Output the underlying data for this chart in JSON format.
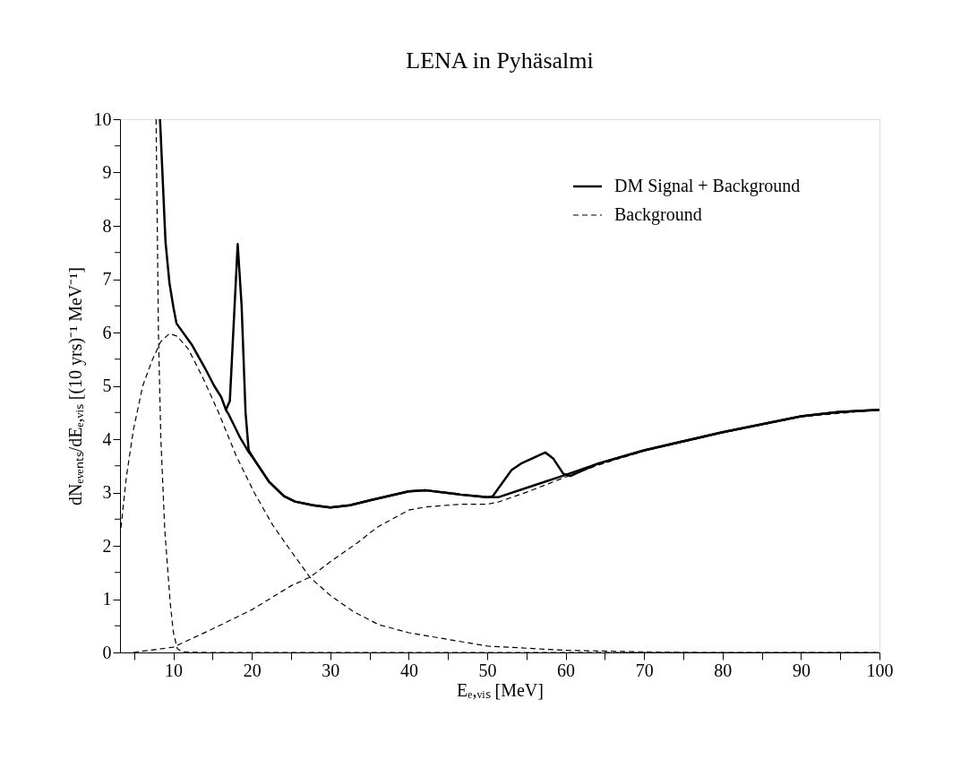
{
  "chart_data": {
    "type": "line",
    "title": "LENA in Pyhäsalmi",
    "xlabel": "Eₑ,ᵥᵢₛ [MeV]",
    "ylabel": "dNₑᵥₑₙₜₛ/dEₑ,ᵥᵢₛ [(10 yrs)⁻¹ MeV⁻¹]",
    "xlim": [
      3.2,
      100
    ],
    "ylim": [
      0,
      10
    ],
    "xticks": [
      {
        "value": 5,
        "label": null
      },
      10,
      {
        "value": 15,
        "label": null
      },
      20,
      {
        "value": 25,
        "label": null
      },
      30,
      {
        "value": 35,
        "label": null
      },
      40,
      {
        "value": 45,
        "label": null
      },
      50,
      {
        "value": 55,
        "label": null
      },
      60,
      {
        "value": 65,
        "label": null
      },
      70,
      {
        "value": 75,
        "label": null
      },
      80,
      {
        "value": 85,
        "label": null
      },
      90,
      {
        "value": 95,
        "label": null
      },
      100
    ],
    "yticks": [
      0,
      {
        "value": 0.5,
        "label": null
      },
      1,
      {
        "value": 1.5,
        "label": null
      },
      2,
      {
        "value": 2.5,
        "label": null
      },
      3,
      {
        "value": 3.5,
        "label": null
      },
      4,
      {
        "value": 4.5,
        "label": null
      },
      5,
      {
        "value": 5.5,
        "label": null
      },
      6,
      {
        "value": 6.5,
        "label": null
      },
      7,
      {
        "value": 7.5,
        "label": null
      },
      8,
      {
        "value": 8.5,
        "label": null
      },
      9,
      {
        "value": 9.5,
        "label": null
      },
      10
    ],
    "legend": "top right",
    "grid": false,
    "series": [
      {
        "name": "DM Signal + Background",
        "color": "#000000",
        "line_style": "solid",
        "x": [
          8.3,
          9.0,
          9.5,
          10.0,
          10.4,
          12.4,
          14.0,
          15.2,
          16.1,
          16.7,
          17.2,
          18.2,
          18.7,
          19.2,
          19.6,
          20.3,
          22.2,
          24.1,
          25.5,
          27.8,
          30,
          32.5,
          35.3,
          40,
          42.2,
          46.6,
          50,
          51.4,
          55.3,
          60,
          64.1,
          70,
          80,
          90,
          94.7,
          100
        ],
        "values": [
          10,
          7.7,
          6.93,
          6.48,
          6.17,
          5.76,
          5.34,
          5.0,
          4.79,
          4.55,
          4.72,
          7.66,
          6.5,
          4.5,
          3.79,
          3.62,
          3.2,
          2.93,
          2.83,
          2.76,
          2.72,
          2.76,
          2.86,
          3.02,
          3.04,
          2.96,
          2.91,
          2.91,
          3.1,
          3.33,
          3.54,
          3.79,
          4.13,
          4.43,
          4.51,
          4.55
        ]
      },
      {
        "color": "#000000",
        "line_style": "solid",
        "x": [
          16.7,
          17.1,
          18.5,
          19.6,
          20.3,
          22.2,
          24.1,
          25.5,
          27.8,
          30,
          32.5,
          35.3,
          40,
          42.2,
          46.6,
          50,
          50.7,
          53.1,
          54.4,
          57.4,
          58.4,
          59.7,
          60.6,
          64.1,
          70,
          80,
          90,
          94.7,
          100
        ],
        "values": [
          4.55,
          4.45,
          4.03,
          3.76,
          3.62,
          3.2,
          2.93,
          2.83,
          2.76,
          2.72,
          2.76,
          2.86,
          3.02,
          3.04,
          2.96,
          2.91,
          2.93,
          3.42,
          3.55,
          3.75,
          3.64,
          3.35,
          3.31,
          3.54,
          3.79,
          4.13,
          4.43,
          4.51,
          4.55
        ]
      },
      {
        "name": "Background",
        "color": "#000000",
        "line_style": "dashed",
        "x": [
          7.8,
          8.1,
          8.4,
          8.9,
          9.6,
          10,
          10.5,
          11.2,
          14.3,
          100
        ],
        "values": [
          10,
          5.97,
          4.03,
          2.31,
          0.93,
          0.38,
          0.07,
          0.01,
          0,
          0
        ]
      },
      {
        "color": "#000000",
        "line_style": "dashed",
        "x": [
          3.2,
          4.0,
          4.9,
          6.1,
          7.3,
          8.4,
          9.5,
          10.5,
          11.9,
          13.8,
          15.7,
          18.0,
          20.3,
          22.7,
          25.0,
          27.4,
          30,
          33,
          36.2,
          40,
          50,
          60,
          70,
          77.2,
          100
        ],
        "values": [
          2.17,
          3.28,
          4.17,
          5.0,
          5.48,
          5.83,
          5.98,
          5.93,
          5.69,
          5.14,
          4.52,
          3.69,
          3.0,
          2.38,
          1.9,
          1.41,
          1.07,
          0.76,
          0.52,
          0.37,
          0.12,
          0.04,
          0.01,
          0,
          0
        ]
      },
      {
        "color": "#000000",
        "line_style": "dashed",
        "x": [
          4.9,
          10,
          14.7,
          20,
          25,
          27.4,
          30,
          33.4,
          36,
          40,
          42.2,
          46.6,
          50,
          51.4,
          55.3,
          60,
          64.1,
          70,
          80,
          90,
          100
        ],
        "values": [
          0,
          0.1,
          0.42,
          0.8,
          1.25,
          1.41,
          1.7,
          2.05,
          2.35,
          2.67,
          2.73,
          2.78,
          2.78,
          2.82,
          3.02,
          3.29,
          3.51,
          3.78,
          4.12,
          4.42,
          4.55
        ]
      }
    ]
  }
}
